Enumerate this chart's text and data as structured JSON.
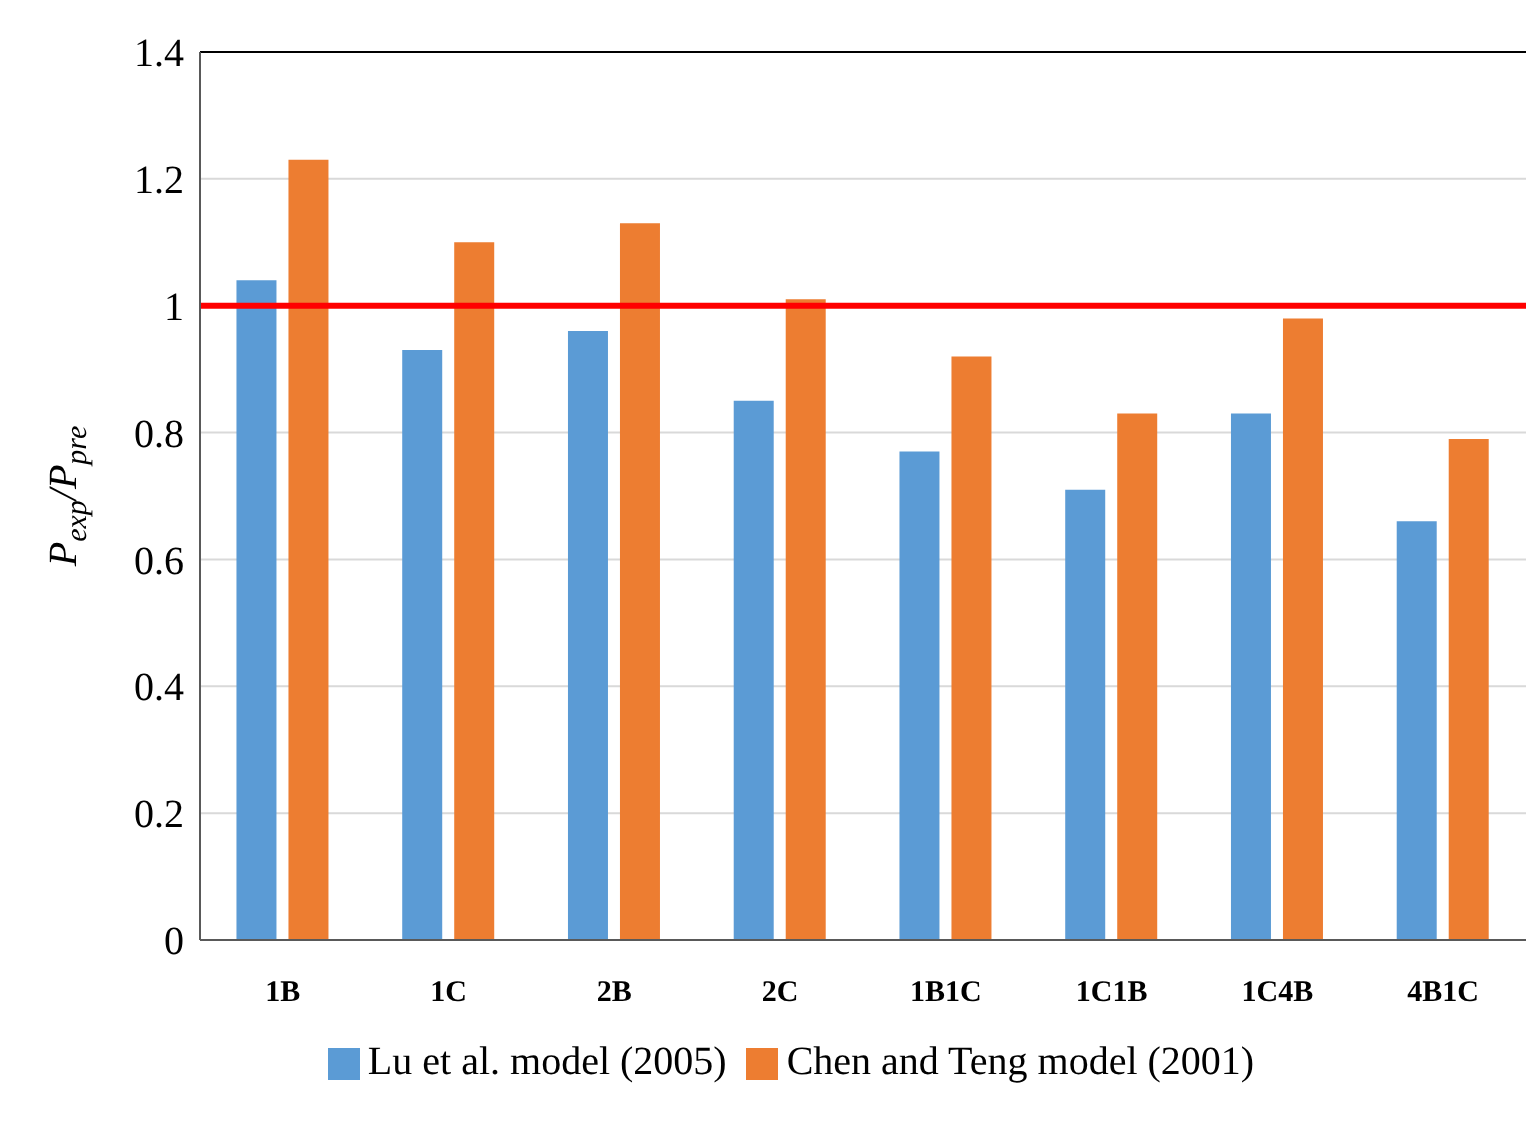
{
  "chart_data": {
    "type": "bar",
    "ylabel": "P$_{exp}$/P$_{pre}$",
    "categories": [
      "1B",
      "1C",
      "2B",
      "2C",
      "1B1C",
      "1C1B",
      "1C4B",
      "4B1C"
    ],
    "series": [
      {
        "name": "Lu et al. model (2005)",
        "color": "#5b9bd5",
        "values": [
          1.04,
          0.93,
          0.96,
          0.85,
          0.77,
          0.71,
          0.83,
          0.66
        ]
      },
      {
        "name": "Chen and Teng model (2001)",
        "color": "#ed7d31",
        "values": [
          1.23,
          1.1,
          1.13,
          1.01,
          0.92,
          0.83,
          0.98,
          0.79
        ]
      }
    ],
    "ylim": [
      0,
      1.4
    ],
    "yticks": [
      0,
      0.2,
      0.4,
      0.6,
      0.8,
      1,
      1.2,
      1.4
    ],
    "grid": "y",
    "legend": "bottom",
    "ref_lines": [
      {
        "axis": "y",
        "value": 1,
        "color": "#ff0000"
      }
    ]
  }
}
